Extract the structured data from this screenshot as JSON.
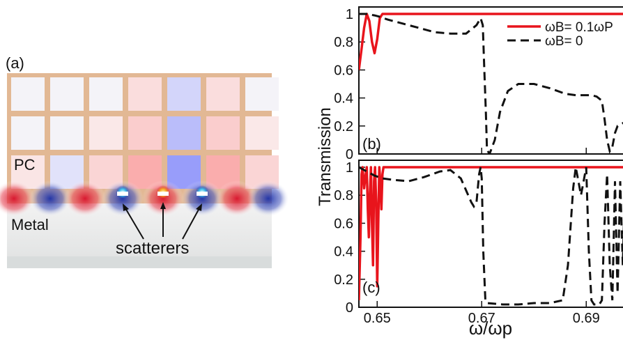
{
  "panel_a": {
    "label": "(a)",
    "pc_label": "PC",
    "metal_label": "Metal",
    "scatterers_label": "scatterers"
  },
  "chart_data": [
    {
      "type": "line",
      "panel_label": "(b)",
      "ylabel": "Transmission",
      "xlabel": "",
      "xlim": [
        0.6465,
        0.6985
      ],
      "ylim": [
        0,
        1.05
      ],
      "xticks": [
        0.65,
        0.67,
        0.69
      ],
      "yticks": [
        0,
        0.2,
        0.4,
        0.6,
        0.8,
        1
      ],
      "ytick_labels": [
        "0",
        "0.2",
        "0.4",
        "0.6",
        "0.8",
        "1"
      ],
      "legend_placement": "top-right",
      "series": [
        {
          "name": "ωB= 0.1ωP",
          "color": "#e8141c",
          "style": "solid",
          "x": [
            0.6465,
            0.647,
            0.6475,
            0.648,
            0.6485,
            0.649,
            0.6495,
            0.65,
            0.6505,
            0.651,
            0.6515,
            0.652,
            0.66,
            0.67,
            0.68,
            0.69,
            0.6985
          ],
          "y": [
            0.6,
            0.75,
            0.9,
            1.0,
            0.95,
            0.8,
            0.72,
            0.82,
            0.97,
            1.0,
            1.0,
            1.0,
            1.0,
            1.0,
            1.0,
            1.0,
            1.0
          ]
        },
        {
          "name": "ωB= 0",
          "color": "#111111",
          "style": "dashed",
          "x": [
            0.6465,
            0.648,
            0.6495,
            0.6505,
            0.652,
            0.655,
            0.658,
            0.661,
            0.664,
            0.667,
            0.669,
            0.6698,
            0.6702,
            0.6705,
            0.6708,
            0.671,
            0.6715,
            0.6725,
            0.6735,
            0.675,
            0.677,
            0.68,
            0.683,
            0.686,
            0.688,
            0.691,
            0.692,
            0.693,
            0.6935,
            0.694,
            0.6945,
            0.695,
            0.6955,
            0.696,
            0.697,
            0.6985
          ],
          "y": [
            1.0,
            1.0,
            0.99,
            0.98,
            0.96,
            0.93,
            0.9,
            0.87,
            0.86,
            0.86,
            0.92,
            0.97,
            0.92,
            0.6,
            0.3,
            0.03,
            0.0,
            0.1,
            0.3,
            0.45,
            0.5,
            0.5,
            0.47,
            0.43,
            0.42,
            0.42,
            0.41,
            0.38,
            0.25,
            0.1,
            0.02,
            0.05,
            0.15,
            0.2,
            0.22,
            0.2
          ]
        }
      ]
    },
    {
      "type": "line",
      "panel_label": "(c)",
      "ylabel": "",
      "xlabel": "ω/ωp",
      "xlim": [
        0.6465,
        0.6985
      ],
      "ylim": [
        0,
        1.05
      ],
      "xticks": [
        0.65,
        0.67,
        0.69
      ],
      "xtick_labels": [
        "0.65",
        "0.67",
        "0.69"
      ],
      "yticks": [
        0,
        0.2,
        0.4,
        0.6,
        0.8,
        1
      ],
      "ytick_labels": [
        "0",
        "0.2",
        "0.4",
        "0.6",
        "0.8",
        "1"
      ],
      "series": [
        {
          "name": "",
          "color": "#e8141c",
          "style": "solid",
          "x": [
            0.6465,
            0.6468,
            0.647,
            0.6472,
            0.6475,
            0.6478,
            0.648,
            0.6482,
            0.6484,
            0.6486,
            0.6488,
            0.649,
            0.6492,
            0.6494,
            0.6496,
            0.6498,
            0.65,
            0.6502,
            0.6504,
            0.6506,
            0.6508,
            0.651,
            0.6512,
            0.6515,
            0.652,
            0.66,
            0.67,
            0.68,
            0.69,
            0.6985
          ],
          "y": [
            0.05,
            0.5,
            0.95,
            1.0,
            0.85,
            0.95,
            1.0,
            0.7,
            0.5,
            0.8,
            1.0,
            0.6,
            0.3,
            0.9,
            1.0,
            0.75,
            0.15,
            0.6,
            1.0,
            0.9,
            0.7,
            0.95,
            1.0,
            1.0,
            1.0,
            1.0,
            1.0,
            1.0,
            1.0,
            1.0
          ]
        },
        {
          "name": "",
          "color": "#111111",
          "style": "dashed",
          "x": [
            0.6465,
            0.648,
            0.6495,
            0.651,
            0.653,
            0.656,
            0.659,
            0.662,
            0.664,
            0.666,
            0.668,
            0.6685,
            0.669,
            0.6695,
            0.6698,
            0.67,
            0.6703,
            0.6707,
            0.671,
            0.674,
            0.677,
            0.68,
            0.683,
            0.6855,
            0.6865,
            0.6875,
            0.688,
            0.6885,
            0.689,
            0.6895,
            0.69,
            0.6905,
            0.691,
            0.6915,
            0.6925,
            0.693,
            0.6935,
            0.694,
            0.6945,
            0.695,
            0.6955,
            0.696,
            0.6965,
            0.697,
            0.6975,
            0.6985
          ],
          "y": [
            1.0,
            0.97,
            0.94,
            0.92,
            0.91,
            0.9,
            0.93,
            0.97,
            0.98,
            0.92,
            0.75,
            0.72,
            0.75,
            0.95,
            1.0,
            0.92,
            0.4,
            0.05,
            0.03,
            0.02,
            0.02,
            0.03,
            0.03,
            0.05,
            0.3,
            0.85,
            1.0,
            0.9,
            0.8,
            0.9,
            1.0,
            0.4,
            0.05,
            0.02,
            0.02,
            0.05,
            0.6,
            0.95,
            0.3,
            0.05,
            0.9,
            0.1,
            0.9,
            0.3,
            1.0,
            0.4
          ]
        }
      ]
    }
  ]
}
